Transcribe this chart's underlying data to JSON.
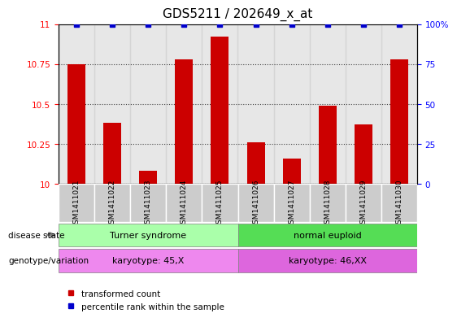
{
  "title": "GDS5211 / 202649_x_at",
  "samples": [
    "GSM1411021",
    "GSM1411022",
    "GSM1411023",
    "GSM1411024",
    "GSM1411025",
    "GSM1411026",
    "GSM1411027",
    "GSM1411028",
    "GSM1411029",
    "GSM1411030"
  ],
  "transformed_counts": [
    10.75,
    10.38,
    10.08,
    10.78,
    10.92,
    10.26,
    10.16,
    10.49,
    10.37,
    10.78
  ],
  "percentile_ranks": [
    100,
    100,
    100,
    100,
    100,
    100,
    100,
    100,
    100,
    100
  ],
  "ylim_left": [
    10,
    11
  ],
  "ylim_right": [
    0,
    100
  ],
  "yticks_left": [
    10,
    10.25,
    10.5,
    10.75,
    11
  ],
  "yticks_right": [
    0,
    25,
    50,
    75,
    100
  ],
  "bar_color": "#cc0000",
  "dot_color": "#0000cc",
  "group1_label": "Turner syndrome",
  "group2_label": "normal euploid",
  "group1_color": "#aaffaa",
  "group2_color": "#55dd55",
  "karyotype1_label": "karyotype: 45,X",
  "karyotype2_label": "karyotype: 46,XX",
  "karyotype1_color": "#ee88ee",
  "karyotype2_color": "#dd66dd",
  "disease_state_label": "disease state",
  "genotype_label": "genotype/variation",
  "legend_red_label": "transformed count",
  "legend_blue_label": "percentile rank within the sample",
  "group1_samples": 5,
  "group2_samples": 5,
  "bar_width": 0.5,
  "grid_style": "dotted",
  "grid_color": "black",
  "grid_alpha": 0.7,
  "title_fontsize": 11,
  "axis_fontsize": 8,
  "tick_fontsize": 7.5
}
